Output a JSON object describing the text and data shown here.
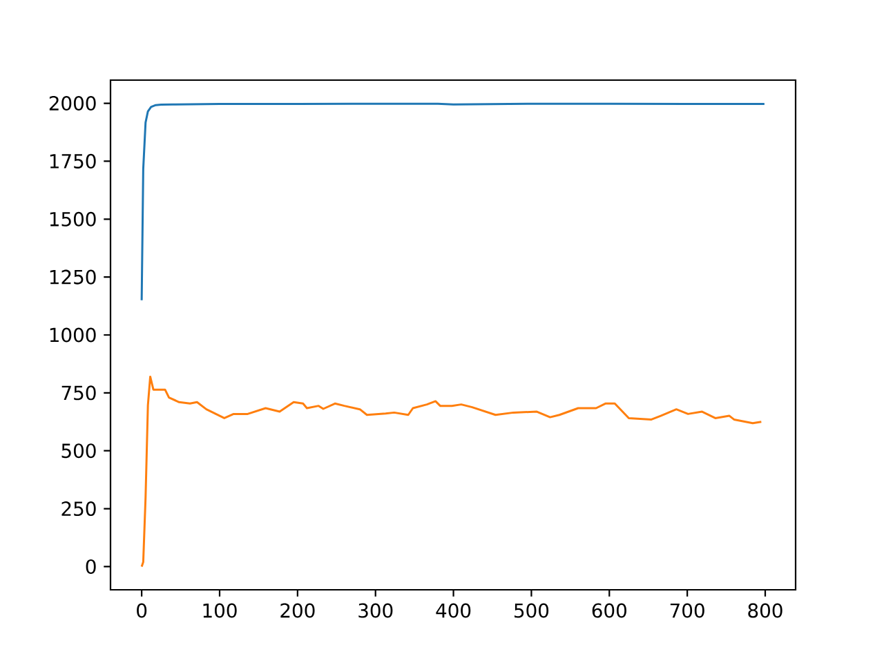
{
  "chart_data": {
    "type": "line",
    "xlim": [
      -40,
      839
    ],
    "ylim": [
      -100,
      2100
    ],
    "xticks": [
      0,
      100,
      200,
      300,
      400,
      500,
      600,
      700,
      800
    ],
    "yticks": [
      0,
      250,
      500,
      750,
      1000,
      1250,
      1500,
      1750,
      2000
    ],
    "grid": false,
    "series": [
      {
        "color": "#1f77b4",
        "x": [
          0,
          2,
          5,
          8,
          12,
          18,
          25,
          40,
          100,
          200,
          300,
          380,
          400,
          500,
          600,
          700,
          799
        ],
        "values": [
          1150,
          1716,
          1917,
          1965,
          1984,
          1992,
          1994,
          1995,
          1997,
          1997,
          1998,
          1998,
          1995,
          1998,
          1998,
          1997,
          1997
        ]
      },
      {
        "color": "#ff7f0e",
        "x": [
          0,
          2,
          5,
          8,
          11,
          15,
          30,
          35,
          48,
          62,
          71,
          83,
          106,
          118,
          136,
          159,
          177,
          195,
          207,
          212,
          227,
          233,
          248,
          260,
          280,
          289,
          313,
          324,
          342,
          348,
          366,
          377,
          383,
          398,
          410,
          424,
          454,
          477,
          507,
          524,
          536,
          560,
          583,
          595,
          607,
          625,
          654,
          666,
          686,
          701,
          719,
          736,
          754,
          760,
          784,
          795
        ],
        "values": [
          0,
          20,
          298,
          696,
          820,
          764,
          764,
          730,
          710,
          704,
          710,
          679,
          641,
          659,
          659,
          684,
          669,
          710,
          704,
          684,
          694,
          681,
          704,
          694,
          679,
          655,
          661,
          665,
          655,
          684,
          700,
          714,
          694,
          694,
          700,
          688,
          655,
          665,
          669,
          645,
          655,
          684,
          684,
          704,
          704,
          641,
          635,
          651,
          679,
          659,
          669,
          641,
          651,
          635,
          619,
          625
        ]
      }
    ]
  }
}
